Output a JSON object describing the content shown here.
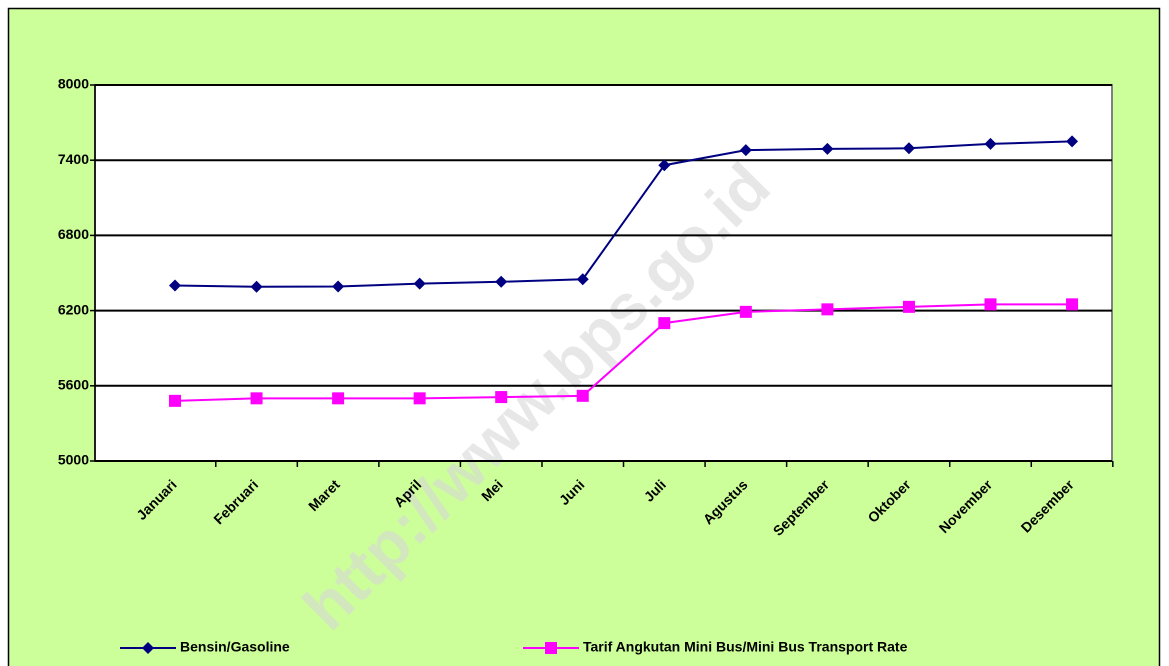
{
  "chart_data": {
    "type": "line",
    "watermark": "http://www.bps.go.id",
    "categories": [
      "Januari",
      "Februari",
      "Maret",
      "April",
      "Mei",
      "Juni",
      "Juli",
      "Agustus",
      "September",
      "Oktober",
      "November",
      "Desember"
    ],
    "series": [
      {
        "name": "Bensin/Gasoline",
        "color": "#000080",
        "marker": "diamond",
        "values": [
          6400,
          6390,
          6392,
          6415,
          6430,
          6450,
          7360,
          7480,
          7490,
          7495,
          7530,
          7550
        ]
      },
      {
        "name": "Tarif Angkutan Mini Bus/Mini Bus Transport Rate",
        "color": "#ff00ff",
        "marker": "square",
        "values": [
          5480,
          5500,
          5500,
          5500,
          5510,
          5520,
          6100,
          6190,
          6210,
          6230,
          6250,
          6250
        ]
      }
    ],
    "ylim": [
      5000,
      8000
    ],
    "yticks": [
      5000,
      5600,
      6200,
      6800,
      7400,
      8000
    ],
    "grid": true,
    "legend": "bottom"
  }
}
